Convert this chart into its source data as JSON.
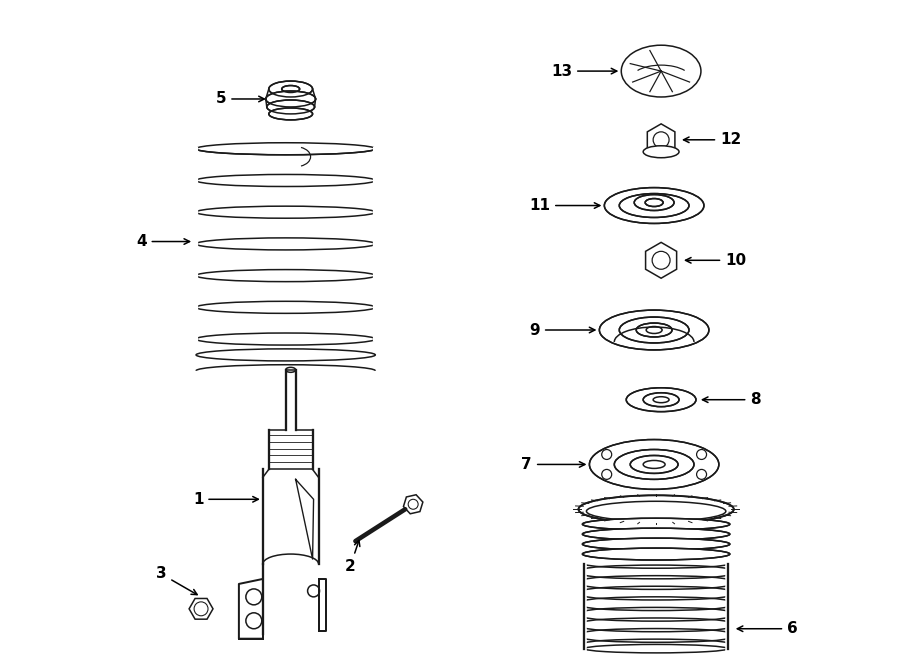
{
  "bg_color": "#ffffff",
  "line_color": "#1a1a1a",
  "fig_width": 9.0,
  "fig_height": 6.61,
  "dpi": 100,
  "label_fontsize": 11,
  "lw": 1.1
}
